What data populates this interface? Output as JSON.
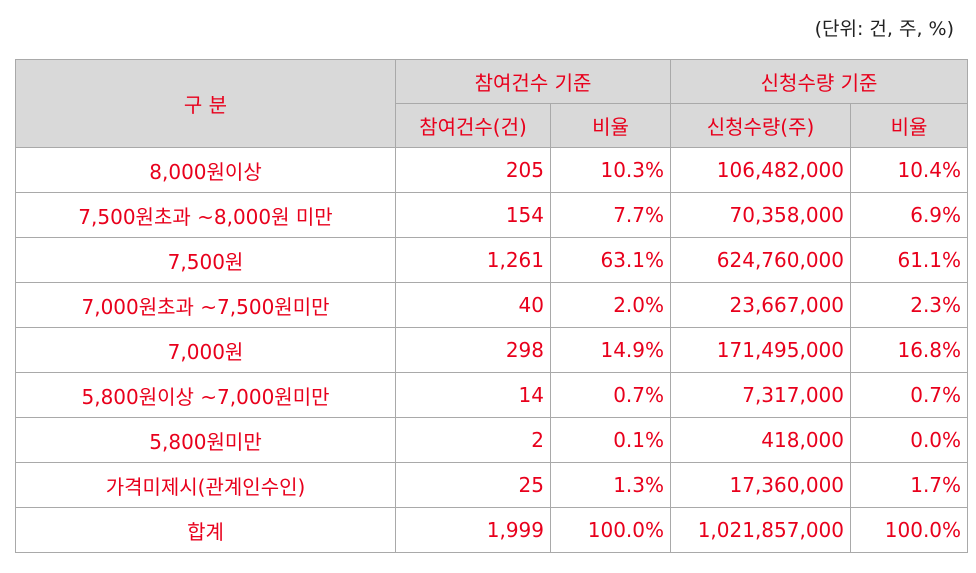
{
  "unit_note": "(단위: 건, 주, %)",
  "header": {
    "category": "구 분",
    "group_participation": "참여건수 기준",
    "group_subscription": "신청수량 기준",
    "col_count": "참여건수(건)",
    "col_count_ratio": "비율",
    "col_qty": "신청수량(주)",
    "col_qty_ratio": "비율"
  },
  "rows": [
    {
      "label": "8,000원이상",
      "count": "205",
      "count_ratio": "10.3%",
      "qty": "106,482,000",
      "qty_ratio": "10.4%"
    },
    {
      "label": "7,500원초과 ~8,000원 미만",
      "count": "154",
      "count_ratio": "7.7%",
      "qty": "70,358,000",
      "qty_ratio": "6.9%"
    },
    {
      "label": "7,500원",
      "count": "1,261",
      "count_ratio": "63.1%",
      "qty": "624,760,000",
      "qty_ratio": "61.1%"
    },
    {
      "label": "7,000원초과 ~7,500원미만",
      "count": "40",
      "count_ratio": "2.0%",
      "qty": "23,667,000",
      "qty_ratio": "2.3%"
    },
    {
      "label": "7,000원",
      "count": "298",
      "count_ratio": "14.9%",
      "qty": "171,495,000",
      "qty_ratio": "16.8%"
    },
    {
      "label": "5,800원이상 ~7,000원미만",
      "count": "14",
      "count_ratio": "0.7%",
      "qty": "7,317,000",
      "qty_ratio": "0.7%"
    },
    {
      "label": "5,800원미만",
      "count": "2",
      "count_ratio": "0.1%",
      "qty": "418,000",
      "qty_ratio": "0.0%"
    },
    {
      "label": "가격미제시(관계인수인)",
      "count": "25",
      "count_ratio": "1.3%",
      "qty": "17,360,000",
      "qty_ratio": "1.7%"
    },
    {
      "label": "합계",
      "count": "1,999",
      "count_ratio": "100.0%",
      "qty": "1,021,857,000",
      "qty_ratio": "100.0%"
    }
  ]
}
